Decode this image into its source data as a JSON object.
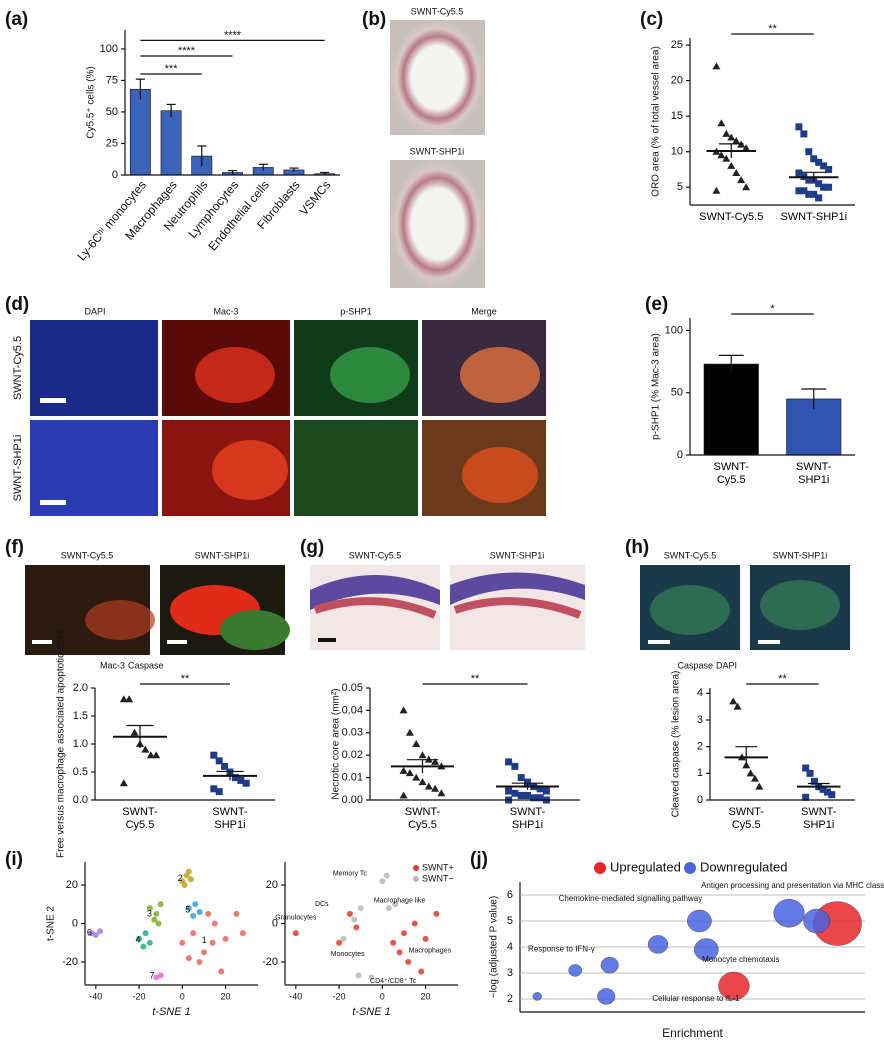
{
  "panel_labels": [
    "(a)",
    "(b)",
    "(c)",
    "(d)",
    "(e)",
    "(f)",
    "(g)",
    "(h)",
    "(i)",
    "(j)"
  ],
  "images": {
    "b_titles": [
      "SWNT-Cy5.5",
      "SWNT-SHP1i"
    ],
    "d_columns": [
      "DAPI",
      "Mac-3",
      "p-SHP1",
      "Merge"
    ],
    "d_rows": [
      "SWNT-Cy5.5",
      "SWNT-SHP1i"
    ],
    "f_titles": [
      "SWNT-Cy5.5",
      "SWNT-SHP1i"
    ],
    "g_titles": [
      "SWNT-Cy5.5",
      "SWNT-SHP1i"
    ],
    "h_titles": [
      "SWNT-Cy5.5",
      "SWNT-SHP1i"
    ],
    "f_legend": [
      "Mac-3",
      "Caspase"
    ],
    "h_legend": [
      "Caspase",
      "DAPI"
    ]
  },
  "chart_data": [
    {
      "type": "bar",
      "ylabel": "Cy5.5⁺ cells (%)",
      "categories": [
        "Ly-6Cʰⁱ monocytes",
        "Macrophages",
        "Neutrophils",
        "Lymphocytes",
        "Endothelial cells",
        "Fibroblasts",
        "VSMCs"
      ],
      "values": [
        68,
        51,
        15,
        2,
        6,
        4,
        1
      ],
      "errors": [
        8,
        5,
        8,
        1.5,
        2.5,
        1.5,
        1
      ],
      "color": "#3b63b8",
      "ylim": [
        0,
        115
      ],
      "yticks": [
        0,
        25,
        50,
        75,
        100
      ],
      "significance": [
        "***",
        "****",
        "****"
      ]
    },
    {
      "type": "dot",
      "ylabel": "ORO area (% of total vessel area)",
      "categories": [
        "SWNT-Cy5.5",
        "SWNT-SHP1i"
      ],
      "points": [
        [
          22,
          14,
          12.5,
          12,
          11.5,
          11,
          10.5,
          10,
          9.5,
          9,
          8,
          7,
          6,
          5,
          4.5
        ],
        [
          13.5,
          12.5,
          10,
          9,
          8.5,
          8,
          7.5,
          7,
          6.5,
          6,
          6,
          5.5,
          5,
          5,
          4.5,
          4.5,
          4,
          4,
          3.5
        ]
      ],
      "means": [
        10.1,
        6.4
      ],
      "errors": [
        1,
        0.7
      ],
      "markers": [
        "triangle",
        "square"
      ],
      "colors": [
        "#222222",
        "#1f3c88"
      ],
      "ylim": [
        2.5,
        26
      ],
      "yticks": [
        5,
        10,
        15,
        20,
        25
      ],
      "significance": [
        "**"
      ]
    },
    {
      "type": "bar",
      "ylabel": "p-SHP1 (% Mac-3 area)",
      "categories": [
        "SWNT-\nCy5.5",
        "SWNT-\nSHP1i"
      ],
      "values": [
        73,
        45
      ],
      "errors": [
        7,
        8
      ],
      "colors": [
        "#000000",
        "#2f55b0"
      ],
      "ylim": [
        0,
        110
      ],
      "yticks": [
        0,
        50,
        100
      ],
      "significance": [
        "*"
      ]
    },
    {
      "type": "dot",
      "ylabel": "Free versus macrophage associated apoptotic cells",
      "categories": [
        "SWNT-\nCy5.5",
        "SWNT-\nSHP1i"
      ],
      "points": [
        [
          1.8,
          1.8,
          1.2,
          1.0,
          0.9,
          0.8,
          0.8,
          0.3
        ],
        [
          0.8,
          0.7,
          0.6,
          0.5,
          0.4,
          0.35,
          0.3,
          0.2,
          0.15
        ]
      ],
      "means": [
        1.13,
        0.43
      ],
      "errors": [
        0.2,
        0.08
      ],
      "markers": [
        "triangle",
        "square"
      ],
      "colors": [
        "#222222",
        "#1f3c88"
      ],
      "ylim": [
        0,
        2.0
      ],
      "yticks": [
        {
          "value": 0,
          "label": "0.0"
        },
        {
          "value": 0.5,
          "label": "0.5"
        },
        {
          "value": 1,
          "label": "1.0"
        },
        {
          "value": 1.5,
          "label": "1.5"
        },
        {
          "value": 2,
          "label": "2.0"
        }
      ],
      "significance": [
        "**"
      ]
    },
    {
      "type": "dot",
      "ylabel": "Necrotic core area (mm²)",
      "categories": [
        "SWNT-\nCy5.5",
        "SWNT-\nSHP1i"
      ],
      "points": [
        [
          0.04,
          0.03,
          0.025,
          0.02,
          0.018,
          0.017,
          0.015,
          0.013,
          0.012,
          0.01,
          0.008,
          0.006,
          0.005,
          0.003,
          0.002
        ],
        [
          0.017,
          0.015,
          0.01,
          0.008,
          0.006,
          0.005,
          0.004,
          0.004,
          0.003,
          0.002,
          0.002,
          0.001,
          0.001,
          0,
          0
        ]
      ],
      "means": [
        0.015,
        0.006
      ],
      "errors": [
        0.003,
        0.0015
      ],
      "markers": [
        "triangle",
        "square"
      ],
      "colors": [
        "#222222",
        "#1f3c88"
      ],
      "ylim": [
        0,
        0.05
      ],
      "yticks": [
        {
          "value": 0,
          "label": "0.00"
        },
        {
          "value": 0.01,
          "label": "0.01"
        },
        {
          "value": 0.02,
          "label": "0.02"
        },
        {
          "value": 0.03,
          "label": "0.03"
        },
        {
          "value": 0.04,
          "label": "0.04"
        },
        {
          "value": 0.05,
          "label": "0.05"
        }
      ],
      "significance": [
        "**"
      ]
    },
    {
      "type": "dot",
      "ylabel": "Cleaved caspase (% lesion area)",
      "categories": [
        "SWNT-\nCy5.5",
        "SWNT-\nSHP1i"
      ],
      "points": [
        [
          3.7,
          3.5,
          1.6,
          1.3,
          1.0,
          0.8,
          0.5
        ],
        [
          1.2,
          1.0,
          0.7,
          0.5,
          0.4,
          0.3,
          0.2,
          0.1
        ]
      ],
      "means": [
        1.6,
        0.5
      ],
      "errors": [
        0.4,
        0.12
      ],
      "markers": [
        "triangle",
        "square"
      ],
      "colors": [
        "#222222",
        "#1f3c88"
      ],
      "ylim": [
        0,
        4.2
      ],
      "yticks": [
        0,
        1,
        2,
        3,
        4
      ],
      "significance": [
        "**"
      ]
    },
    {
      "type": "scatter",
      "xlabel": "t-SNE 1",
      "ylabel": "t-SNE 2",
      "xlim": [
        -45,
        35
      ],
      "ylim": [
        -32,
        32
      ],
      "xticks": [
        -40,
        -20,
        0,
        20
      ],
      "yticks": [
        -20,
        0,
        20
      ],
      "legend": false,
      "series": [
        {
          "name": "1",
          "color": "#e8675c",
          "x": [
            0,
            5,
            10,
            15,
            20,
            25,
            8,
            12,
            18,
            3,
            28,
            14
          ],
          "y": [
            -10,
            -5,
            -15,
            0,
            -8,
            5,
            -20,
            5,
            -25,
            -18,
            -5,
            -10
          ]
        },
        {
          "name": "2",
          "color": "#c4a020",
          "x": [
            0,
            2,
            4,
            1,
            3
          ],
          "y": [
            22,
            25,
            23,
            20,
            27
          ]
        },
        {
          "name": "3",
          "color": "#7cad28",
          "x": [
            -15,
            -12,
            -10,
            -13,
            -11
          ],
          "y": [
            8,
            5,
            10,
            2,
            0
          ]
        },
        {
          "name": "4",
          "color": "#19b38a",
          "x": [
            -20,
            -17,
            -15,
            -18
          ],
          "y": [
            -8,
            -5,
            -10,
            -12
          ]
        },
        {
          "name": "5",
          "color": "#2aa4dc",
          "x": [
            3,
            6,
            8,
            5
          ],
          "y": [
            8,
            10,
            6,
            4
          ]
        },
        {
          "name": "6",
          "color": "#a07de0",
          "x": [
            -42,
            -40,
            -38
          ],
          "y": [
            -5,
            -6,
            -4
          ]
        },
        {
          "name": "7",
          "color": "#e86acf",
          "x": [
            -12,
            -10
          ],
          "y": [
            -28,
            -27
          ]
        }
      ]
    },
    {
      "type": "scatter",
      "xlabel": "t-SNE 1",
      "xlim": [
        -45,
        35
      ],
      "ylim": [
        -32,
        32
      ],
      "xticks": [
        -40,
        -20,
        0,
        20
      ],
      "yticks": [
        -20,
        0,
        20
      ],
      "legend": true,
      "annotations": [
        "Memory Tc",
        "DCs",
        "Macrophage like",
        "Granulocytes",
        "Monocytes",
        "Macrophages",
        "CD4⁺/CD8⁺ Tc"
      ],
      "series": [
        {
          "name": "SWNT+",
          "color": "#e03a2f",
          "x": [
            5,
            10,
            15,
            20,
            25,
            12,
            18,
            -15,
            -12,
            8,
            -20,
            -40
          ],
          "y": [
            -10,
            -5,
            0,
            -8,
            5,
            -20,
            -25,
            5,
            -2,
            -15,
            -10,
            -5
          ]
        },
        {
          "name": "SWNT−",
          "color": "#b9b9b9",
          "x": [
            0,
            2,
            -10,
            -13,
            3,
            6,
            -5,
            -11,
            -18
          ],
          "y": [
            22,
            25,
            8,
            2,
            8,
            10,
            -28,
            -27,
            -8
          ]
        }
      ]
    },
    {
      "type": "bubble",
      "xlabel": "Enrichment",
      "ylabel": "−log (adjusted P value)",
      "xlim": [
        0,
        10
      ],
      "ylim": [
        1.5,
        6.5
      ],
      "yticks": [
        2,
        3,
        4,
        5,
        6
      ],
      "grid": true,
      "annotations": [
        "Antigen processing and presentation via MHC class II",
        "Chemokine-mediated signalling pathway",
        "Response to IFN-γ",
        "Monocyte chemotaxis",
        "Cellular response to IL-1"
      ],
      "series": [
        {
          "name": "Upregulated",
          "color": "#e8262a",
          "x": [
            9.2,
            6.2
          ],
          "y": [
            4.9,
            2.5
          ],
          "sizes": [
            22,
            14
          ]
        },
        {
          "name": "Downregulated",
          "color": "#4a63e0",
          "x": [
            0.5,
            1.6,
            2.6,
            2.5,
            4.0,
            5.2,
            5.4,
            7.8,
            8.6
          ],
          "y": [
            2.1,
            3.1,
            3.3,
            2.1,
            4.1,
            5.0,
            3.9,
            5.3,
            5.0
          ],
          "sizes": [
            4,
            6,
            8,
            8,
            9,
            11,
            11,
            14,
            12
          ]
        }
      ]
    }
  ]
}
